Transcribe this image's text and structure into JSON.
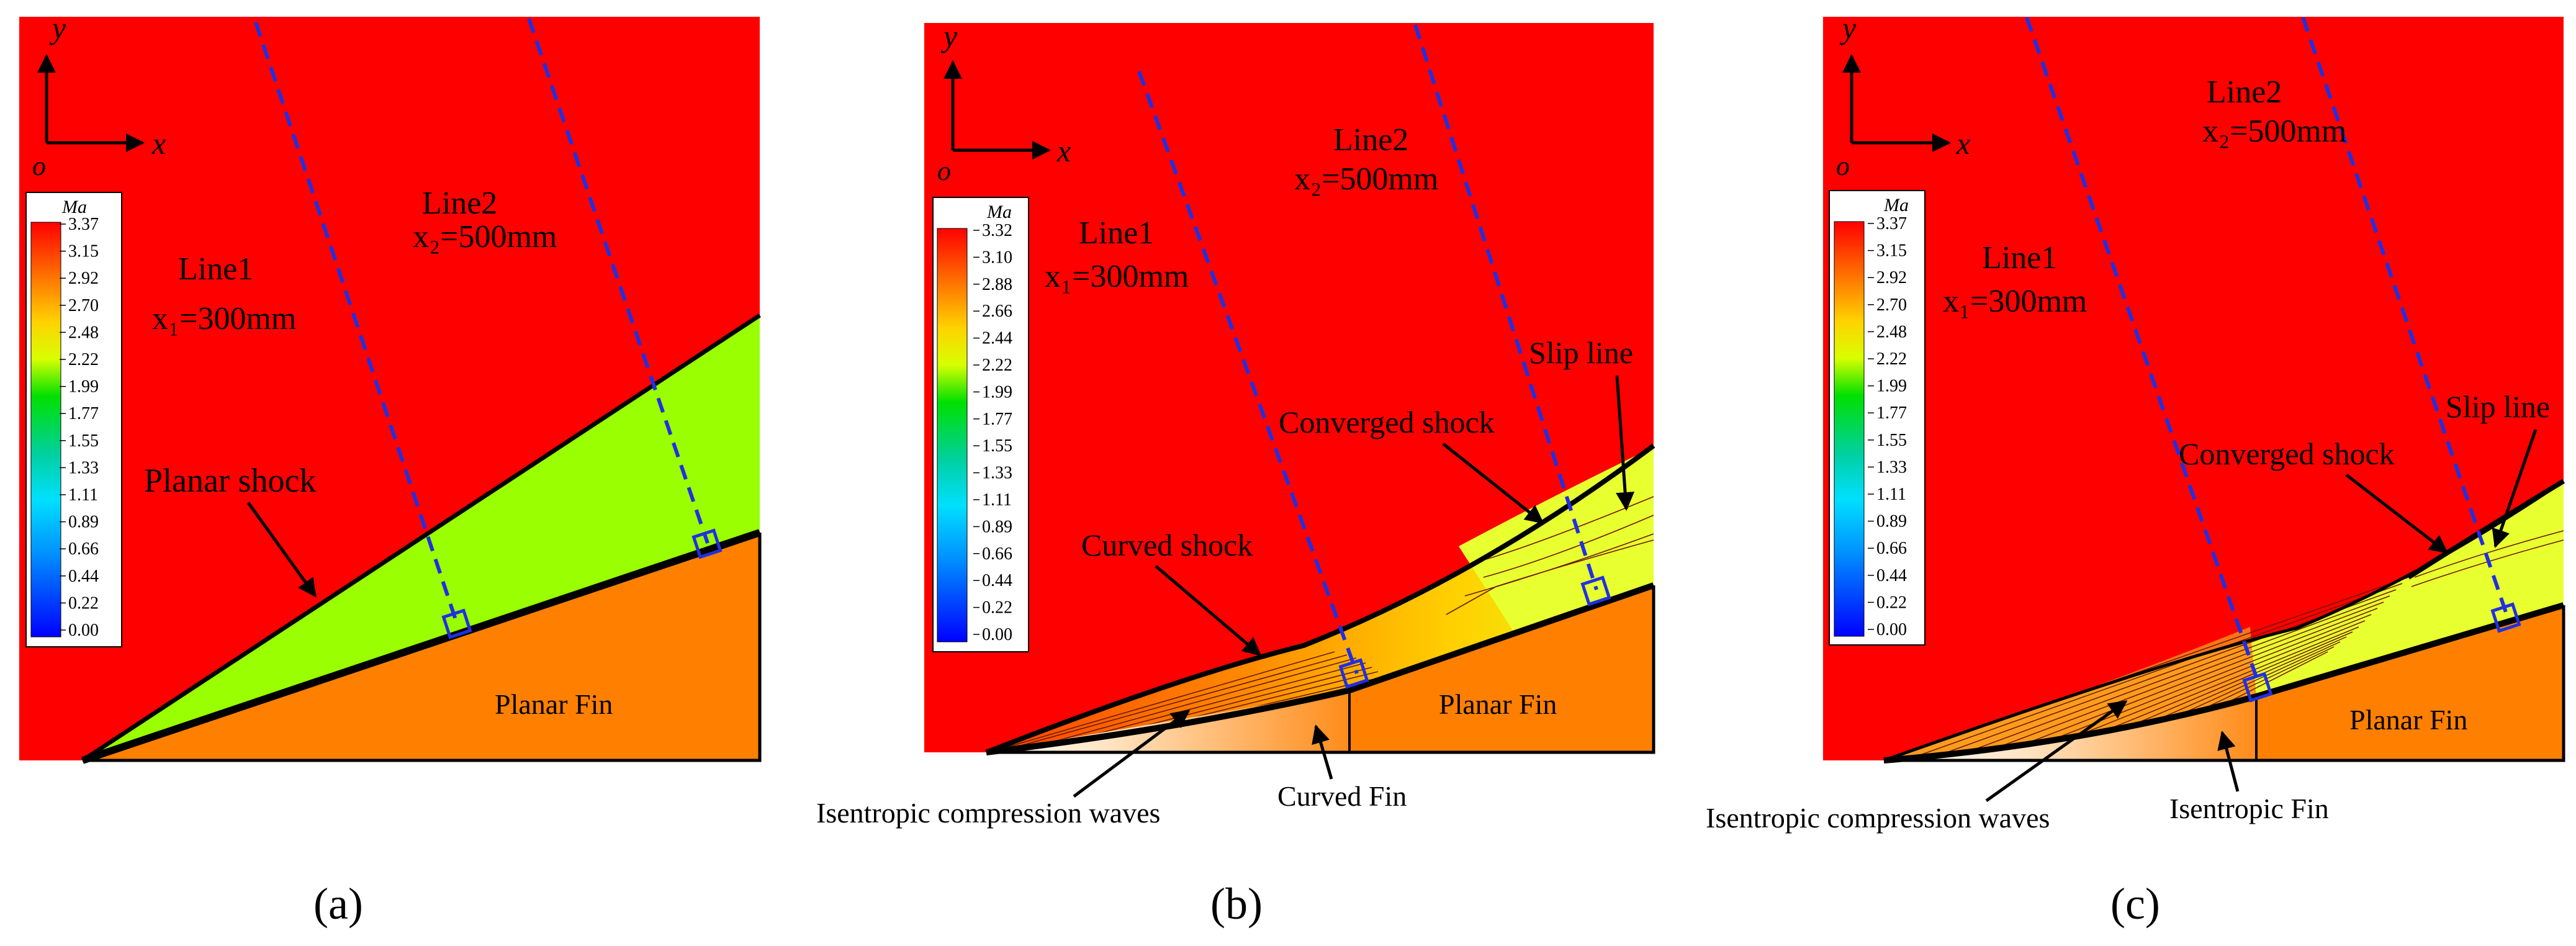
{
  "colors": {
    "free_stream": "#ff0000",
    "post_shock": "#9aff00",
    "post_shock_curved": "#d8ff1e",
    "fin": "#ff8000",
    "fin_curved_light": "#ffe8c8",
    "probe_line": "#2030e0",
    "outline": "#000000"
  },
  "axis": {
    "y_label": "y",
    "x_label": "x",
    "origin_label": "o"
  },
  "panels": [
    {
      "id": "a",
      "caption": "(a)",
      "legend": {
        "title": "Ma",
        "ticks": [
          "3.37",
          "3.15",
          "2.92",
          "2.70",
          "2.48",
          "2.22",
          "1.99",
          "1.77",
          "1.55",
          "1.33",
          "1.11",
          "0.89",
          "0.66",
          "0.44",
          "0.22",
          "0.00"
        ]
      },
      "line1": {
        "name": "Line1",
        "position": "x₁=300mm"
      },
      "line2": {
        "name": "Line2",
        "position": "x₂=500mm"
      },
      "labels": {
        "shock": "Planar shock",
        "fin": "Planar Fin"
      }
    },
    {
      "id": "b",
      "caption": "(b)",
      "legend": {
        "title": "Ma",
        "ticks": [
          "3.32",
          "3.10",
          "2.88",
          "2.66",
          "2.44",
          "2.22",
          "1.99",
          "1.77",
          "1.55",
          "1.33",
          "1.11",
          "0.89",
          "0.66",
          "0.44",
          "0.22",
          "0.00"
        ]
      },
      "line1": {
        "name": "Line1",
        "position": "x₁=300mm"
      },
      "line2": {
        "name": "Line2",
        "position": "x₂=500mm"
      },
      "labels": {
        "slip_line": "Slip line",
        "converged_shock": "Converged  shock",
        "curved_shock": "Curved shock",
        "fin": "Planar Fin",
        "waves": "Isentropic compression waves",
        "curved_fin": "Curved Fin"
      }
    },
    {
      "id": "c",
      "caption": "(c)",
      "legend": {
        "title": "Ma",
        "ticks": [
          "3.37",
          "3.15",
          "2.92",
          "2.70",
          "2.48",
          "2.22",
          "1.99",
          "1.77",
          "1.55",
          "1.33",
          "1.11",
          "0.89",
          "0.66",
          "0.44",
          "0.22",
          "0.00"
        ]
      },
      "line1": {
        "name": "Line1",
        "position": "x₁=300mm"
      },
      "line2": {
        "name": "Line2",
        "position": "x₂=500mm"
      },
      "labels": {
        "slip_line": "Slip line",
        "converged_shock": "Converged  shock",
        "fin": "Planar Fin",
        "waves": "Isentropic compression waves",
        "isentropic_fin": "Isentropic Fin"
      }
    }
  ]
}
